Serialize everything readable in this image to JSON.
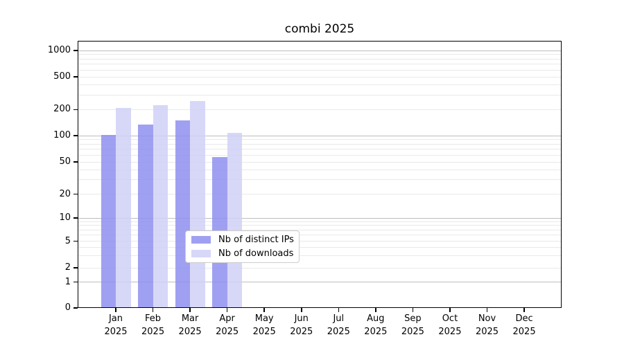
{
  "title": "combi 2025",
  "chart_data": {
    "type": "bar",
    "title": "combi 2025",
    "categories": [
      "Jan 2025",
      "Feb 2025",
      "Mar 2025",
      "Apr 2025",
      "May 2025",
      "Jun 2025",
      "Jul 2025",
      "Aug 2025",
      "Sep 2025",
      "Oct 2025",
      "Nov 2025",
      "Dec 2025"
    ],
    "series": [
      {
        "name": "Nb of distinct IPs",
        "color": "#8f8ff0",
        "values": [
          101,
          135,
          150,
          57,
          null,
          null,
          null,
          null,
          null,
          null,
          null,
          null
        ]
      },
      {
        "name": "Nb of downloads",
        "color": "#d0d0f7",
        "values": [
          210,
          225,
          255,
          108,
          null,
          null,
          null,
          null,
          null,
          null,
          null,
          null
        ]
      }
    ],
    "xlabel": "",
    "ylabel": "",
    "yaxis": {
      "scale": "symlog",
      "ticks": [
        0,
        1,
        2,
        5,
        10,
        20,
        50,
        100,
        200,
        500,
        1000
      ],
      "range": [
        0,
        1300
      ]
    },
    "grid": true,
    "legend_position": "lower center",
    "grid_major_color": "#bdbdbd",
    "grid_minor_color": "#e9e9e9"
  }
}
